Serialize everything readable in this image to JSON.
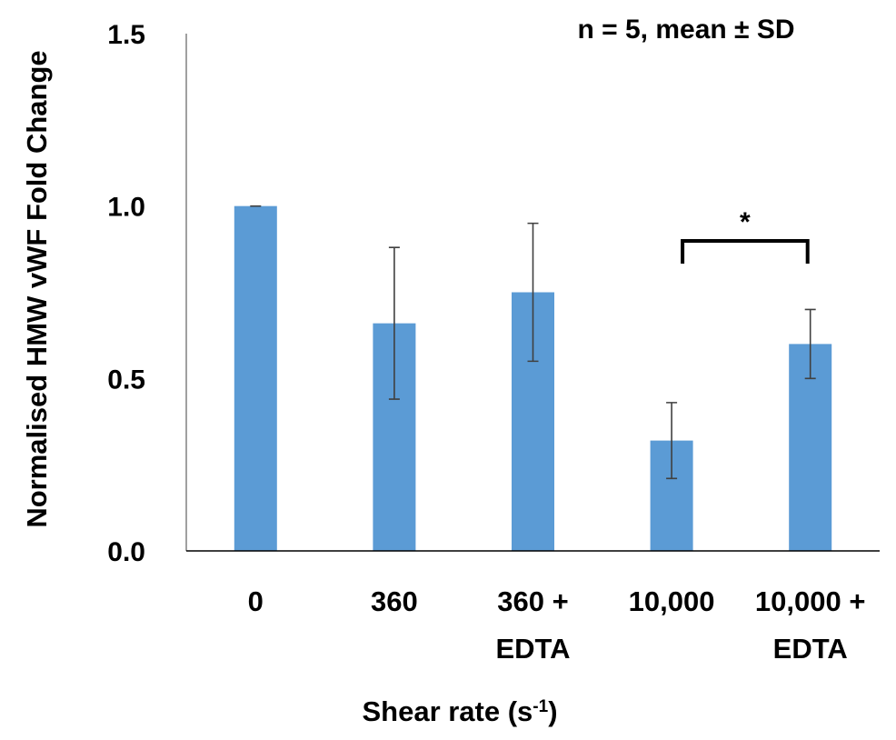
{
  "chart_data": {
    "type": "bar",
    "categories": [
      [
        "0"
      ],
      [
        "360"
      ],
      [
        "360 +",
        "EDTA"
      ],
      [
        "10,000"
      ],
      [
        "10,000 +",
        "EDTA"
      ]
    ],
    "values": [
      1.0,
      0.66,
      0.75,
      0.32,
      0.6
    ],
    "error_sd": [
      0.0,
      0.22,
      0.2,
      0.11,
      0.1
    ],
    "ylabel": "Normalised HMW vWF Fold Change",
    "xlabel": {
      "main": "Shear rate (s",
      "superscript": "-1",
      "suffix": ")"
    },
    "ylim": [
      0.0,
      1.5
    ],
    "yticks": [
      "0.0",
      "0.5",
      "1.0",
      "1.5"
    ],
    "annotation": "n = 5, mean ± SD",
    "significance": {
      "label": "*",
      "between": [
        3,
        4
      ]
    },
    "bar_color": "#5b9bd5",
    "error_color": "#404040",
    "grid": false,
    "legend": "none"
  }
}
